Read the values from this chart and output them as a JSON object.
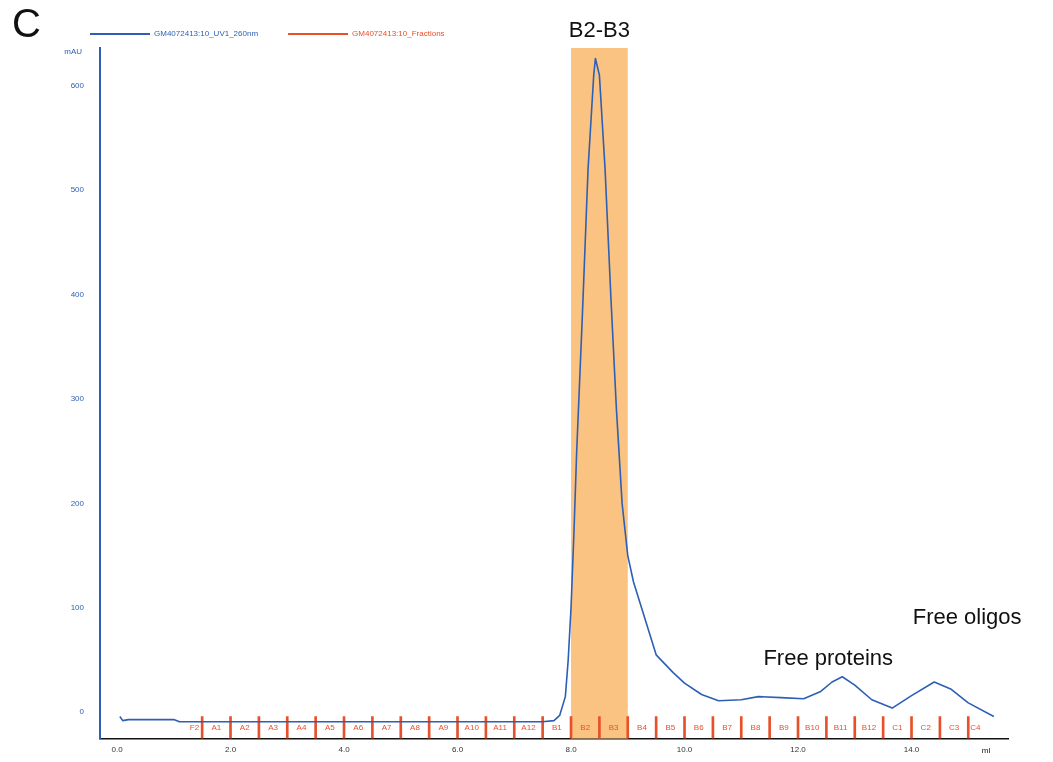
{
  "chart_data": {
    "type": "line",
    "ylabel": "mAU",
    "xlabel": "ml",
    "legend": "top left",
    "marker": "none",
    "grid": false,
    "xlim": [
      -0.3,
      15.7
    ],
    "ylim": [
      -25,
      636
    ],
    "xticks": [
      {
        "value": 0,
        "label": "0.0"
      },
      {
        "value": 2,
        "label": "2.0"
      },
      {
        "value": 4,
        "label": "4.0"
      },
      {
        "value": 6,
        "label": "6.0"
      },
      {
        "value": 8,
        "label": "8.0"
      },
      {
        "value": 10,
        "label": "10.0"
      },
      {
        "value": 12,
        "label": "12.0"
      },
      {
        "value": 14,
        "label": "14.0"
      }
    ],
    "yticks": [
      0,
      100,
      200,
      300,
      400,
      500,
      600
    ],
    "bands": [
      {
        "axis": "x",
        "from": 8.0,
        "to": 9.0,
        "label": "B2-B3",
        "color": "#fbc382"
      }
    ],
    "series": [
      {
        "name": "GM4072413:10_UV1_260nm",
        "color": "#2d5fb4",
        "x": [
          0.05,
          0.1,
          0.2,
          1.0,
          1.1,
          2,
          4,
          6,
          7.5,
          7.7,
          7.8,
          7.9,
          7.95,
          8.0,
          8.05,
          8.1,
          8.2,
          8.3,
          8.4,
          8.43,
          8.5,
          8.6,
          8.7,
          8.8,
          8.9,
          9.0,
          9.1,
          9.3,
          9.5,
          9.8,
          10.0,
          10.3,
          10.6,
          11.0,
          11.3,
          11.7,
          12.1,
          12.4,
          12.6,
          12.78,
          13.0,
          13.3,
          13.66,
          14.0,
          14.4,
          14.7,
          15.0,
          15.45
        ],
        "values": [
          -4,
          -8,
          -7,
          -7,
          -9,
          -9,
          -9,
          -9,
          -9,
          -8,
          -3,
          15,
          50,
          100,
          170,
          250,
          380,
          520,
          610,
          626,
          610,
          520,
          400,
          290,
          200,
          150,
          125,
          90,
          55,
          38,
          28,
          17,
          11,
          12,
          15,
          14,
          13,
          20,
          29,
          34,
          26,
          12,
          4,
          16,
          29,
          22,
          9,
          -4
        ]
      },
      {
        "name": "GM4072413:10_Fractions",
        "color": "#e8502a",
        "type": "bar",
        "x": [
          1.5,
          2.0,
          2.5,
          3.0,
          3.5,
          4.0,
          4.5,
          5.0,
          5.5,
          6.0,
          6.5,
          7.0,
          7.5,
          8.0,
          8.5,
          9.0,
          9.5,
          10.0,
          10.5,
          11.0,
          11.5,
          12.0,
          12.5,
          13.0,
          13.5,
          14.0,
          14.5,
          15.0
        ],
        "base": [
          -25,
          -25,
          -25,
          -25,
          -25,
          -25,
          -25,
          -25,
          -25,
          -25,
          -25,
          -25,
          -25,
          -25,
          -25,
          -25,
          -25,
          -25,
          -25,
          -25,
          -25,
          -25,
          -25,
          -25,
          -25,
          -25,
          -25,
          -25
        ],
        "values": [
          21,
          21,
          21,
          21,
          21,
          21,
          21,
          21,
          21,
          21,
          21,
          21,
          21,
          21,
          21,
          21,
          21,
          21,
          21,
          21,
          21,
          21,
          21,
          21,
          21,
          21,
          21,
          21
        ]
      }
    ],
    "annotations": [
      "C",
      "F2",
      "A1",
      "A2",
      "A3",
      "A4",
      "A5",
      "A6",
      "A7",
      "A8",
      "A9",
      "A10",
      "A11",
      "A12",
      "B1",
      "B2",
      "B3",
      "B4",
      "B5",
      "B6",
      "B7",
      "B8",
      "B9",
      "B10",
      "B11",
      "B12",
      "C1",
      "C2",
      "C3",
      "C4",
      "Free proteins",
      "Free oligos"
    ]
  }
}
